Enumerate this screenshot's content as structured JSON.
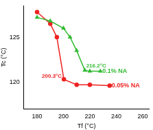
{
  "chart_data": {
    "type": "line",
    "x_label": "Tf (°C)",
    "y_label": "Tc (°C)",
    "xlim": [
      170,
      265
    ],
    "xticks": [
      180,
      200,
      220,
      240,
      260
    ],
    "ylim": [
      117,
      128.5
    ],
    "yticks": [
      120,
      125
    ],
    "grid": false,
    "series": [
      {
        "name": "0.1% NA",
        "color": "#33bb33",
        "marker": "triangle",
        "x": [
          180,
          190,
          200,
          205,
          210,
          216.2,
          220,
          228
        ],
        "values": [
          127.2,
          126.8,
          126.0,
          125.0,
          123.5,
          121.3,
          121.2,
          121.2
        ]
      },
      {
        "name": "0.05% NA",
        "color": "#ee2222",
        "marker": "circle",
        "x": [
          180,
          190,
          195,
          200.3,
          210,
          220,
          235
        ],
        "values": [
          127.8,
          126.5,
          125.0,
          120.3,
          119.7,
          119.7,
          119.6
        ]
      }
    ],
    "annotations": [
      {
        "text": "216.2°C",
        "x": 216.2,
        "y": 121.3,
        "color": "#33bb33"
      },
      {
        "text": "200.3°C",
        "x": 200.3,
        "y": 120.3,
        "color": "#ee2222"
      }
    ]
  }
}
